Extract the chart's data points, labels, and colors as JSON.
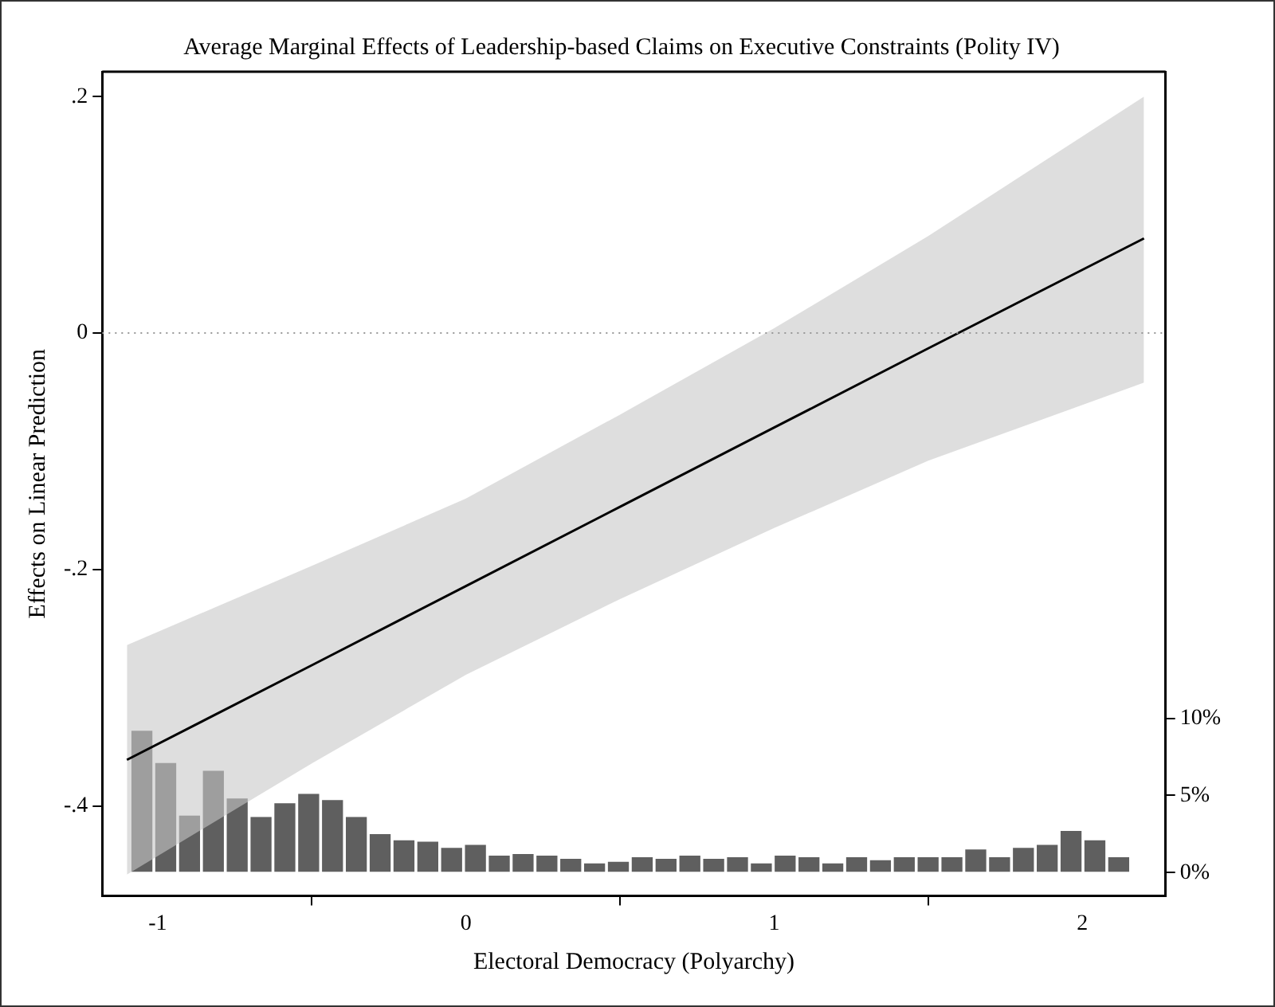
{
  "chart_data": {
    "type": "line",
    "title": "Average Marginal Effects of Leadership-based Claims on Executive Constraints (Polity IV)",
    "xlabel": "Electoral Democracy (Polyarchy)",
    "ylabel": "Effects on Linear Prediction",
    "xlim": [
      -1.18,
      2.27
    ],
    "xticks": [
      -1,
      0,
      1,
      2
    ],
    "ylim": [
      -0.476,
      0.221
    ],
    "yticks": [
      {
        "value": -0.4,
        "label": "-.4"
      },
      {
        "value": -0.2,
        "label": "-.2"
      },
      0,
      {
        "value": 0.2,
        "label": ".2"
      }
    ],
    "y2lim": [
      -1.5,
      51.9
    ],
    "y2ticks": [
      {
        "value": 0,
        "label": "0%"
      },
      {
        "value": 5,
        "label": "5%"
      },
      {
        "value": 10,
        "label": "10%"
      }
    ],
    "grid": false,
    "legend": false,
    "ref_lines": [
      {
        "axis": "y",
        "value": 0,
        "color": "#999999",
        "line_style": "dotted"
      }
    ],
    "series": [
      {
        "type": "histogram",
        "axis": "y2",
        "color": "#5f5f5f",
        "bins": [
          -1.09,
          -1.0127,
          -0.9354,
          -0.8581,
          -0.7808,
          -0.7035,
          -0.6262,
          -0.5489,
          -0.4716,
          -0.3943,
          -0.317,
          -0.2397,
          -0.1624,
          -0.0851,
          -0.0078,
          0.0695,
          0.1468,
          0.2241,
          0.3014,
          0.3787,
          0.456,
          0.5333,
          0.6106,
          0.6879,
          0.7652,
          0.8425,
          0.9198,
          0.9971,
          1.0744,
          1.1517,
          1.229,
          1.3063,
          1.3836,
          1.4609,
          1.5382,
          1.6155,
          1.6928,
          1.7701,
          1.8474,
          1.9247,
          2.002,
          2.0793,
          2.1566
        ],
        "values": [
          9.2,
          7.1,
          3.7,
          6.6,
          4.8,
          3.6,
          4.5,
          5.1,
          4.7,
          3.6,
          2.5,
          2.1,
          2.0,
          1.6,
          1.8,
          1.1,
          1.2,
          1.1,
          0.9,
          0.6,
          0.7,
          1.0,
          0.9,
          1.1,
          0.9,
          1.0,
          0.6,
          1.1,
          1.0,
          0.6,
          1.0,
          0.8,
          1.0,
          1.0,
          1.0,
          1.5,
          1.0,
          1.6,
          1.8,
          2.7,
          2.1,
          1.0
        ]
      },
      {
        "color": "#000000",
        "x": [
          -1.1,
          -0.5,
          0,
          0.5,
          1,
          1.5,
          2.2
        ],
        "values": [
          -0.361,
          -0.281,
          -0.214,
          -0.147,
          -0.08,
          -0.013,
          0.08
        ],
        "lower": [
          -0.458,
          -0.364,
          -0.289,
          -0.225,
          -0.165,
          -0.108,
          -0.042
        ],
        "upper": [
          -0.264,
          -0.197,
          -0.14,
          -0.069,
          0.004,
          0.082,
          0.2
        ]
      }
    ]
  }
}
